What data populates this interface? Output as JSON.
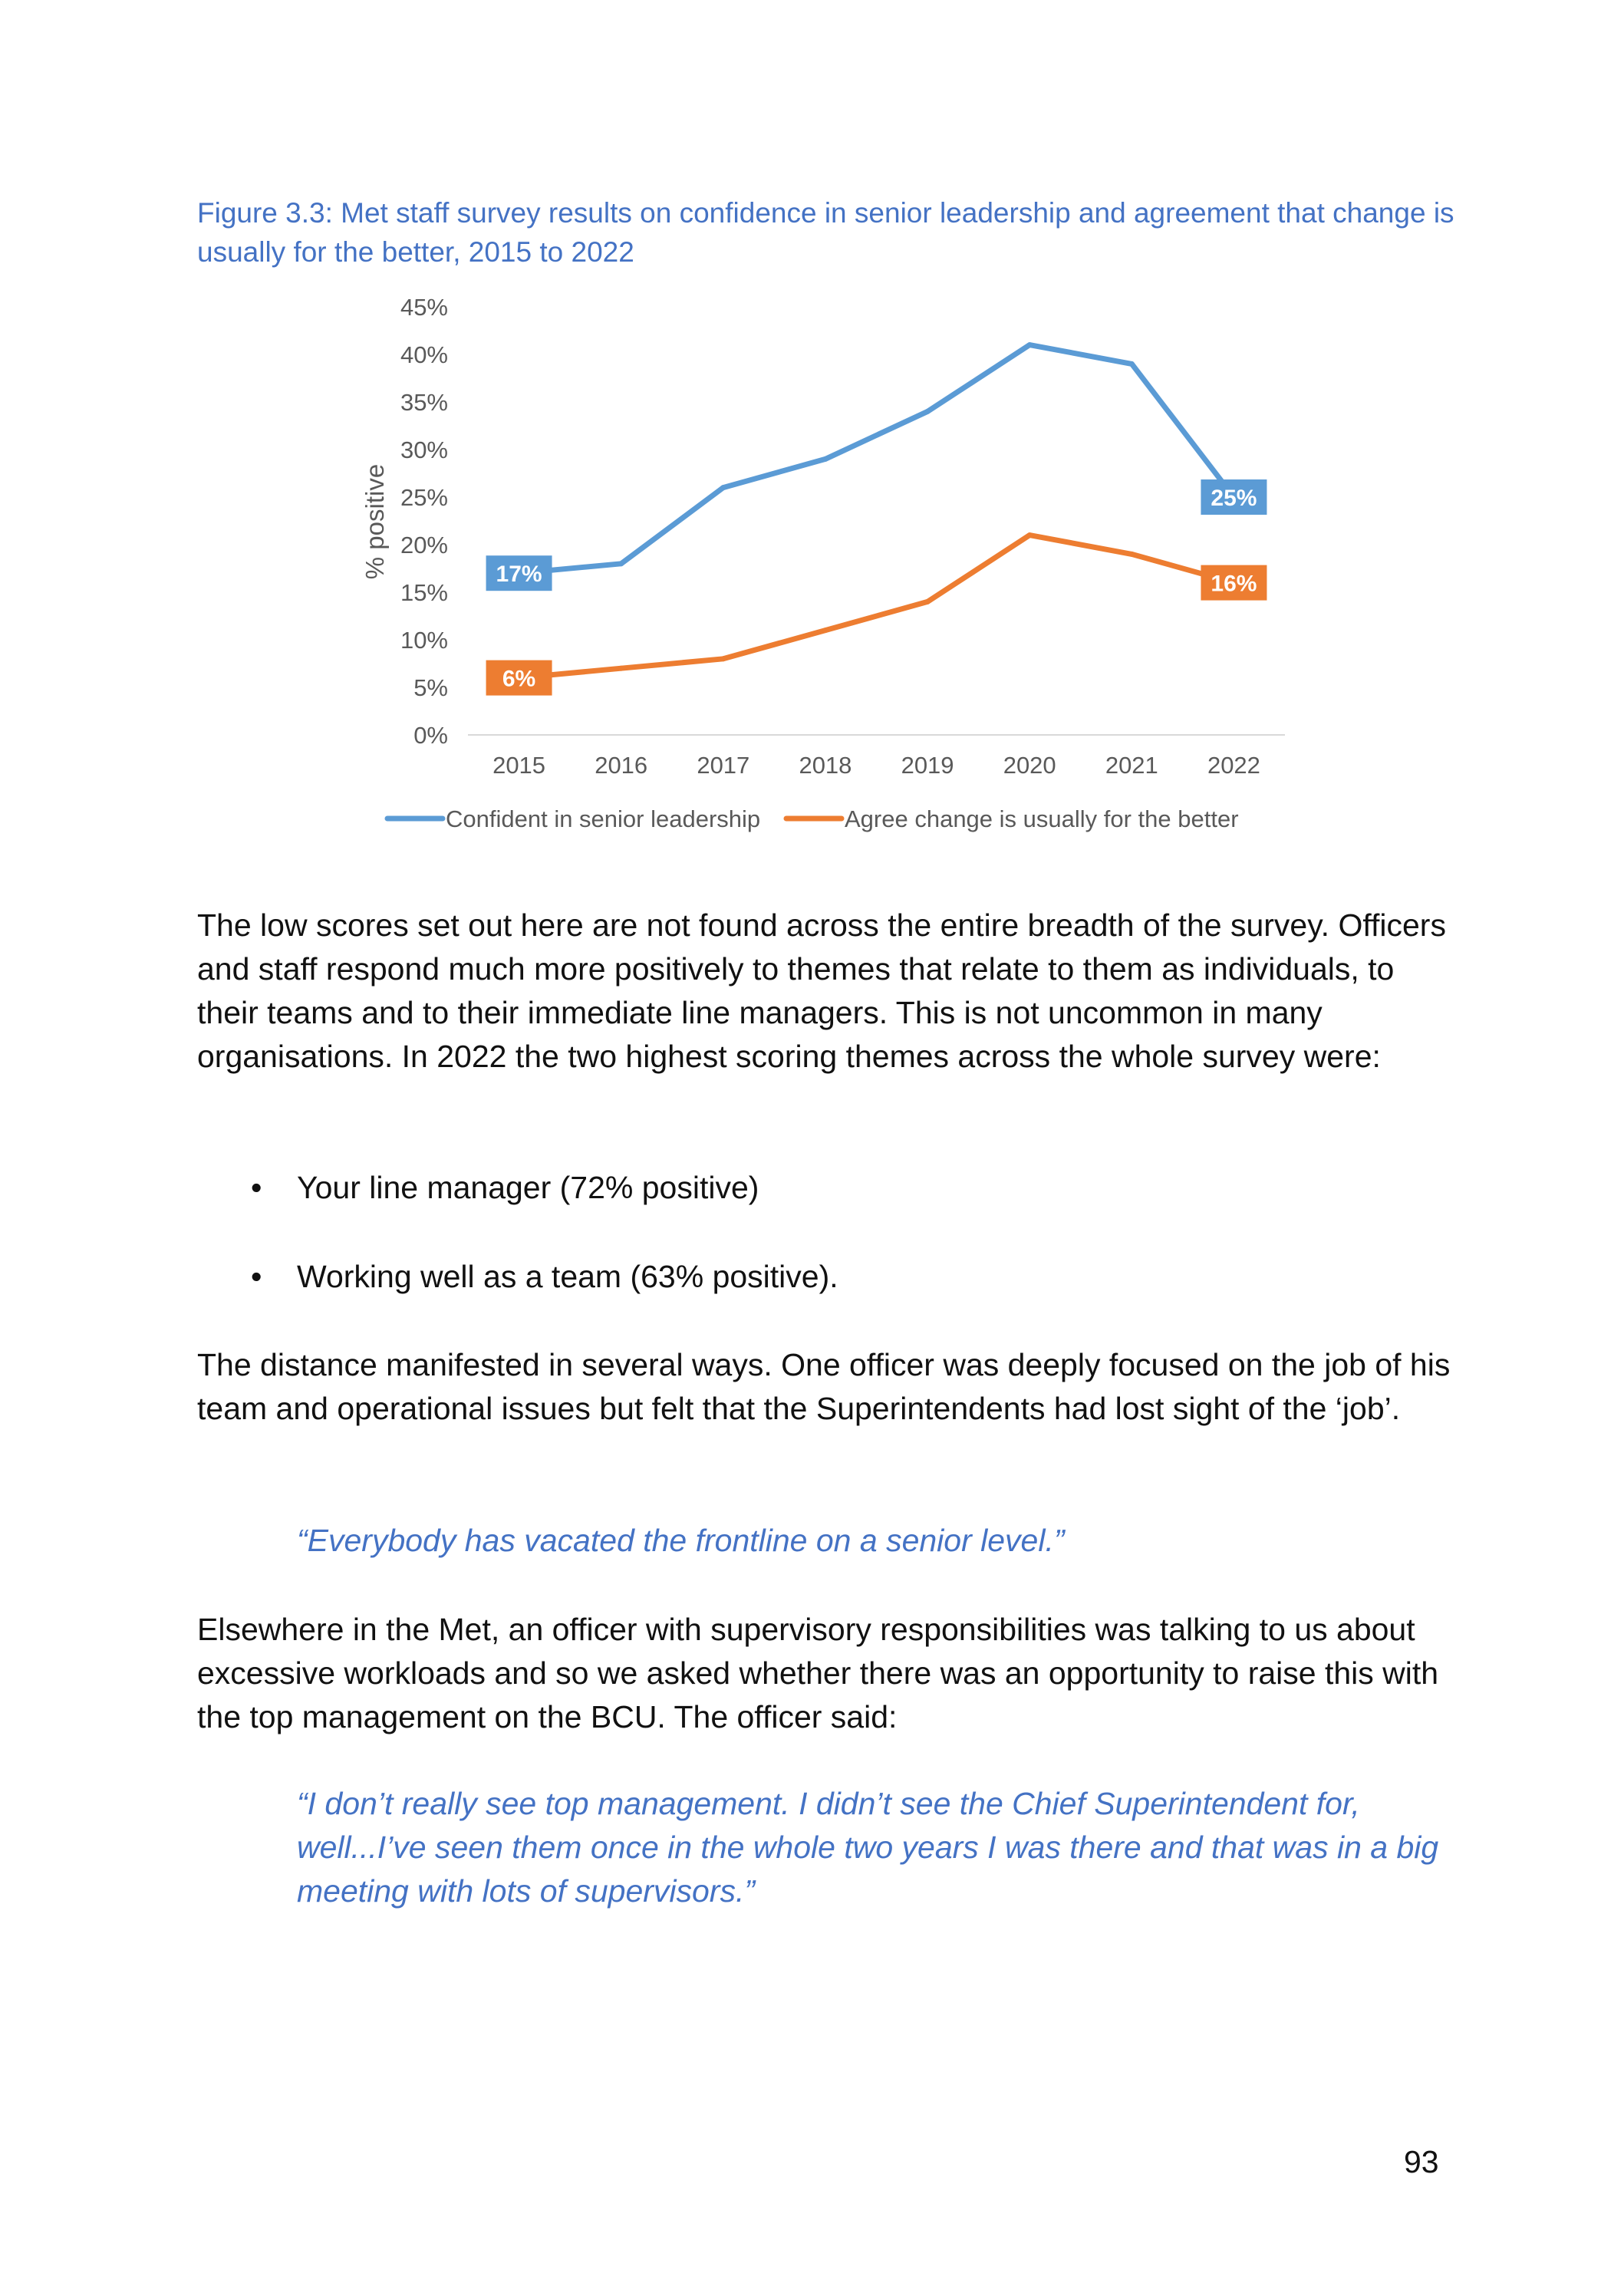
{
  "figure": {
    "caption": "Figure 3.3: Met staff survey results on confidence in senior leadership and agreement that change is usually for the better, 2015 to 2022"
  },
  "chart_data": {
    "type": "line",
    "title": "",
    "xlabel": "",
    "ylabel": "% positive",
    "x": [
      "2015",
      "2016",
      "2017",
      "2018",
      "2019",
      "2020",
      "2021",
      "2022"
    ],
    "yticks": [
      "0%",
      "5%",
      "10%",
      "15%",
      "20%",
      "25%",
      "30%",
      "35%",
      "40%",
      "45%"
    ],
    "ylim": [
      0,
      45
    ],
    "grid": false,
    "legend_position": "bottom",
    "series": [
      {
        "name": "Confident in senior leadership",
        "color": "#5B9BD5",
        "values": [
          17,
          18,
          26,
          29,
          34,
          41,
          39,
          25
        ],
        "data_labels": {
          "0": "17%",
          "7": "25%"
        }
      },
      {
        "name": "Agree change is usually for the better",
        "color": "#ED7D31",
        "values": [
          6,
          7,
          8,
          11,
          14,
          21,
          19,
          16
        ],
        "data_labels": {
          "0": "6%",
          "7": "16%"
        }
      }
    ]
  },
  "paragraphs": {
    "p1": "The low scores set out here are not found across the entire breadth of the survey. Officers and staff respond much more positively to themes that relate to them as individuals, to their teams and to their immediate line managers. This is not uncommon in many organisations. In 2022 the two highest scoring themes across the whole survey were:",
    "bullets": [
      "Your line manager (72% positive)",
      "Working well as a team (63% positive)."
    ],
    "bullet_symbol": "•",
    "p2": "The distance manifested in several ways. One officer was deeply focused on the job of his team and operational issues but felt that the Superintendents had lost sight of the ‘job’.",
    "quote1": "“Everybody has vacated the frontline on a senior level.”",
    "p3": "Elsewhere in the Met, an officer with supervisory responsibilities was talking to us about excessive workloads and so we asked whether there was an opportunity to raise this with the top management on the BCU. The officer said:",
    "quote2": "“I don’t really see top management. I didn’t see the Chief Superintendent for, well...I’ve seen them once in the whole two years I was there and that was in a big meeting with lots of supervisors.”"
  },
  "page_number": "93"
}
